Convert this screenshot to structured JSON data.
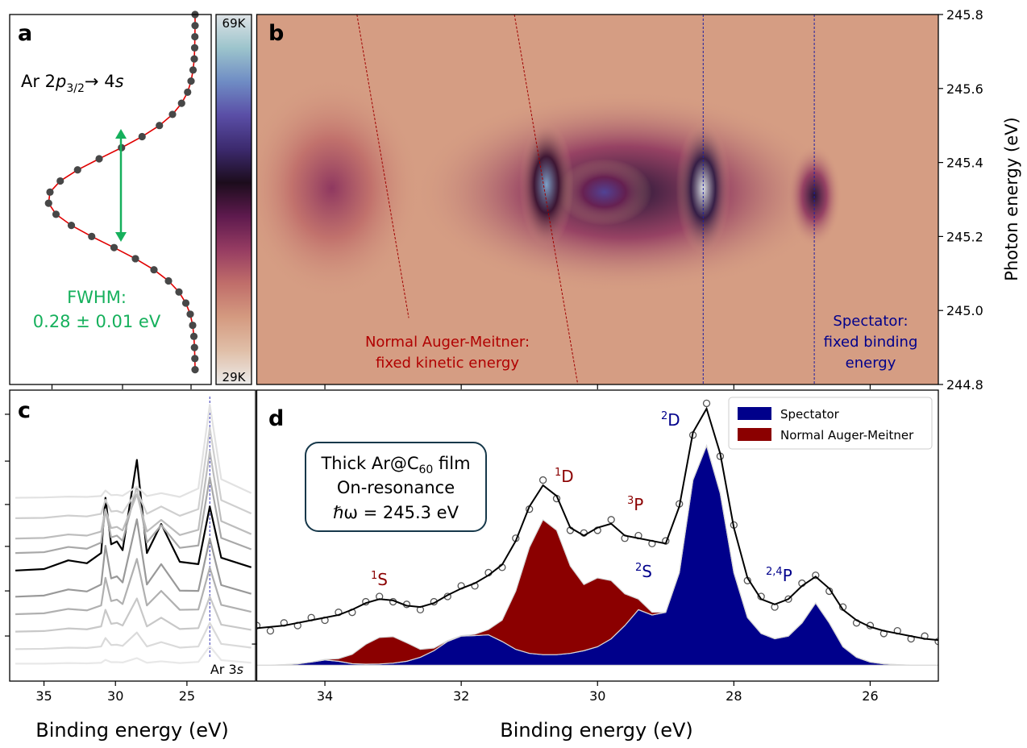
{
  "chart_data": [
    {
      "type": "scatter",
      "panel": "a",
      "annotation": [
        "Ar 2",
        "p",
        "3/2",
        "→ 4",
        "s"
      ],
      "fwhm": [
        "FWHM:",
        "0.28 ± 0.01 eV"
      ],
      "color": "#474747",
      "fit_color": "#e00000",
      "x": [
        0.92,
        0.92,
        0.919,
        0.918,
        0.916,
        0.91,
        0.9,
        0.883,
        0.853,
        0.808,
        0.743,
        0.657,
        0.555,
        0.444,
        0.337,
        0.251,
        0.2,
        0.193,
        0.23,
        0.306,
        0.407,
        0.518,
        0.624,
        0.716,
        0.788,
        0.84,
        0.874,
        0.896,
        0.908,
        0.914,
        0.917,
        0.919,
        0.92
      ],
      "y": [
        245.8,
        245.77,
        245.74,
        245.71,
        245.68,
        245.65,
        245.62,
        245.59,
        245.56,
        245.53,
        245.5,
        245.47,
        245.44,
        245.41,
        245.38,
        245.35,
        245.32,
        245.29,
        245.26,
        245.23,
        245.2,
        245.17,
        245.14,
        245.11,
        245.08,
        245.05,
        245.02,
        244.99,
        244.96,
        244.93,
        244.9,
        244.87,
        244.84
      ],
      "xlim": [
        0,
        1
      ],
      "ylim": [
        244.8,
        245.8
      ],
      "xticks": [
        0.21,
        0.56,
        0.9
      ]
    },
    {
      "type": "colorbar",
      "colormap": [
        "#ecebea",
        "#e0bfa8",
        "#d49a80",
        "#c06e6a",
        "#963c62",
        "#5e1a4e",
        "#1c0c1c",
        "#3c2a6e",
        "#5a4ea6",
        "#6f8cc4",
        "#9cc4cc",
        "#dfe3e6"
      ],
      "ylim": [
        29000,
        69000
      ],
      "yticks": [
        {
          "value": 69000,
          "label": "69K"
        },
        {
          "value": 29000,
          "label": "29K"
        }
      ]
    },
    {
      "type": "heatmap",
      "panel": "b",
      "xlim": [
        35,
        25
      ],
      "ylim": [
        244.8,
        245.8
      ],
      "xticks": [
        34,
        32,
        30,
        28,
        26
      ],
      "yticks": [
        244.8,
        {
          "value": 245,
          "label": "245.0"
        },
        245.2,
        245.4,
        245.6,
        245.8
      ],
      "ylabel": "Photon energy (eV)",
      "background": 36000,
      "peaks": [
        {
          "x": 29.6,
          "y": 245.32,
          "z": 52000,
          "wx": 6.2,
          "wy": 0.55
        },
        {
          "x": 33.9,
          "y": 245.33,
          "z": 44000,
          "wx": 2.6,
          "wy": 0.6
        },
        {
          "x": 29.9,
          "y": 245.32,
          "z": 57000,
          "wx": 1.4,
          "wy": 0.18
        },
        {
          "x": 30.75,
          "y": 245.34,
          "z": 63000,
          "wx": 0.8,
          "wy": 0.34
        },
        {
          "x": 28.45,
          "y": 245.33,
          "z": 69000,
          "wx": 0.8,
          "wy": 0.36
        },
        {
          "x": 26.82,
          "y": 245.31,
          "z": 52000,
          "wx": 0.8,
          "wy": 0.28
        }
      ],
      "guides": [
        {
          "x": [
            33.53,
            32.77
          ],
          "y": [
            245.8,
            244.98
          ],
          "color": "#a00000"
        },
        {
          "x": [
            31.22,
            30.29
          ],
          "y": [
            245.8,
            244.8
          ],
          "color": "#a00000"
        },
        {
          "x": [
            28.45,
            28.45
          ],
          "y": [
            245.8,
            244.8
          ],
          "color": "#2020a0"
        },
        {
          "x": [
            26.82,
            26.82
          ],
          "y": [
            245.8,
            244.8
          ],
          "color": "#2020a0"
        }
      ],
      "normal_label": [
        "Normal Auger-Meitner:",
        "fixed kinetic energy"
      ],
      "normal_color": "#b00000",
      "spectator_label": [
        "Spectator:",
        "fixed binding",
        "energy"
      ],
      "spectator_color": "#00008b"
    },
    {
      "type": "line",
      "panel": "c",
      "xlim": [
        37.4,
        20.2
      ],
      "ylim": [
        0,
        10
      ],
      "xticks": [
        35,
        30,
        25
      ],
      "yticks": [
        1.55,
        3.1,
        4.63,
        6.07,
        7.56,
        9.17
      ],
      "xlabel": "Binding energy (eV)",
      "guide_x": 23.4,
      "guide_label": [
        "Ar 3",
        "s"
      ],
      "guide_color": "#3030b0",
      "x": [
        37,
        35,
        33.3,
        32,
        31,
        30.7,
        30.3,
        29.9,
        29.5,
        28.5,
        27.8,
        26.8,
        25.5,
        24.2,
        23.4,
        22.6,
        20.5
      ],
      "series": [
        {
          "color": "#e8e8e8",
          "values": [
            0.6,
            0.6,
            0.62,
            0.61,
            0.63,
            0.73,
            0.65,
            0.65,
            0.64,
            0.79,
            0.63,
            0.68,
            0.62,
            0.66,
            1.2,
            0.72,
            0.63
          ]
        },
        {
          "color": "#dadada",
          "values": [
            1.1,
            1.11,
            1.15,
            1.14,
            1.19,
            1.48,
            1.24,
            1.25,
            1.21,
            1.67,
            1.19,
            1.34,
            1.15,
            1.19,
            2.0,
            1.28,
            1.15
          ]
        },
        {
          "color": "#c8c8c8",
          "values": [
            1.7,
            1.72,
            1.81,
            1.78,
            1.88,
            2.45,
            1.97,
            2.0,
            1.91,
            2.84,
            1.88,
            2.18,
            1.79,
            1.82,
            2.9,
            1.94,
            1.76
          ]
        },
        {
          "color": "#b0b0b0",
          "values": [
            2.3,
            2.33,
            2.48,
            2.43,
            2.6,
            3.55,
            2.75,
            2.8,
            2.65,
            4.2,
            2.6,
            3.1,
            2.45,
            2.46,
            3.9,
            2.62,
            2.38
          ]
        },
        {
          "color": "#999999",
          "values": [
            2.9,
            2.94,
            3.15,
            3.08,
            3.32,
            4.65,
            3.53,
            3.6,
            3.39,
            5.56,
            3.32,
            4.02,
            3.11,
            3.1,
            4.9,
            3.3,
            3.0
          ]
        },
        {
          "color": "#000000",
          "values": [
            3.8,
            3.85,
            4.15,
            4.05,
            4.4,
            6.3,
            4.7,
            4.8,
            4.5,
            7.6,
            4.4,
            5.4,
            4.1,
            4.02,
            6.0,
            4.24,
            3.91
          ]
        },
        {
          "color": "#a8a8a8",
          "values": [
            4.4,
            4.43,
            4.61,
            4.55,
            4.76,
            5.9,
            4.94,
            5.0,
            4.82,
            6.68,
            4.76,
            5.36,
            4.58,
            4.66,
            7.0,
            4.92,
            4.53
          ]
        },
        {
          "color": "#bdbdbd",
          "values": [
            4.9,
            4.92,
            5.04,
            5.0,
            5.14,
            5.9,
            5.26,
            5.3,
            5.18,
            6.42,
            5.14,
            5.54,
            5.02,
            5.2,
            7.9,
            5.5,
            5.05
          ]
        },
        {
          "color": "#cfcfcf",
          "values": [
            5.6,
            5.61,
            5.69,
            5.66,
            5.75,
            6.23,
            5.83,
            5.85,
            5.78,
            6.55,
            5.75,
            6.0,
            5.68,
            5.91,
            8.7,
            6.22,
            5.76
          ]
        },
        {
          "color": "#e2e2e2",
          "values": [
            6.3,
            6.31,
            6.34,
            6.33,
            6.36,
            6.55,
            6.39,
            6.4,
            6.37,
            6.68,
            6.36,
            6.46,
            6.33,
            6.62,
            9.5,
            6.94,
            6.46
          ]
        }
      ]
    },
    {
      "type": "area",
      "panel": "d",
      "xlim": [
        35,
        25
      ],
      "ylim": [
        -0.06,
        1.04
      ],
      "xticks": [
        34,
        32,
        30,
        28,
        26
      ],
      "yticks": [
        0.08
      ],
      "xlabel": "Binding energy (eV)",
      "x": [
        35,
        34.8,
        34.6,
        34.4,
        34.2,
        34,
        33.8,
        33.6,
        33.4,
        33.2,
        33,
        32.8,
        32.6,
        32.4,
        32.2,
        32,
        31.8,
        31.6,
        31.4,
        31.2,
        31,
        30.8,
        30.6,
        30.4,
        30.2,
        30,
        29.8,
        29.6,
        29.4,
        29.2,
        29,
        28.8,
        28.6,
        28.4,
        28.2,
        28,
        27.8,
        27.6,
        27.4,
        27.2,
        27,
        26.8,
        26.6,
        26.4,
        26.2,
        26,
        25.8,
        25.6,
        25.4,
        25.2,
        25
      ],
      "series": [
        {
          "name": "Spectator",
          "color": "#00008b",
          "values": [
            0,
            0,
            0.002,
            0.005,
            0.012,
            0.02,
            0.015,
            0.006,
            0.004,
            0.005,
            0.008,
            0.015,
            0.03,
            0.055,
            0.09,
            0.11,
            0.112,
            0.115,
            0.09,
            0.06,
            0.045,
            0.04,
            0.04,
            0.045,
            0.055,
            0.07,
            0.1,
            0.15,
            0.21,
            0.19,
            0.2,
            0.35,
            0.7,
            0.83,
            0.65,
            0.35,
            0.18,
            0.12,
            0.1,
            0.11,
            0.16,
            0.235,
            0.16,
            0.07,
            0.03,
            0.012,
            0.005,
            0.002,
            0,
            0,
            0
          ]
        },
        {
          "name": "Normal Auger-Meitner",
          "color": "#8b0000",
          "values": [
            0,
            0,
            0,
            0,
            0,
            0.002,
            0.01,
            0.035,
            0.075,
            0.1,
            0.1,
            0.07,
            0.03,
            0.01,
            0.003,
            0.002,
            0.005,
            0.02,
            0.08,
            0.22,
            0.4,
            0.51,
            0.47,
            0.33,
            0.25,
            0.26,
            0.22,
            0.12,
            0.04,
            0.01,
            0,
            0,
            0,
            0,
            0,
            0,
            0,
            0,
            0,
            0,
            0,
            0,
            0,
            0,
            0,
            0,
            0,
            0,
            0,
            0,
            0
          ]
        }
      ],
      "fit": {
        "color": "#000000",
        "values": [
          0.14,
          0.145,
          0.15,
          0.16,
          0.17,
          0.18,
          0.19,
          0.21,
          0.235,
          0.25,
          0.245,
          0.225,
          0.22,
          0.235,
          0.265,
          0.29,
          0.31,
          0.34,
          0.38,
          0.47,
          0.6,
          0.68,
          0.64,
          0.52,
          0.49,
          0.52,
          0.535,
          0.49,
          0.48,
          0.47,
          0.46,
          0.6,
          0.88,
          0.97,
          0.8,
          0.52,
          0.33,
          0.25,
          0.23,
          0.25,
          0.3,
          0.335,
          0.29,
          0.21,
          0.17,
          0.145,
          0.13,
          0.12,
          0.11,
          0.1,
          0.095
        ]
      },
      "points": {
        "color": "#555555",
        "values": [
          0.15,
          0.13,
          0.16,
          0.15,
          0.18,
          0.17,
          0.2,
          0.2,
          0.24,
          0.26,
          0.24,
          0.23,
          0.21,
          0.24,
          0.26,
          0.3,
          0.3,
          0.35,
          0.37,
          0.48,
          0.59,
          0.7,
          0.63,
          0.51,
          0.5,
          0.51,
          0.55,
          0.48,
          0.49,
          0.46,
          0.47,
          0.61,
          0.87,
          0.99,
          0.79,
          0.53,
          0.32,
          0.26,
          0.22,
          0.25,
          0.31,
          0.34,
          0.28,
          0.22,
          0.16,
          0.15,
          0.12,
          0.13,
          0.1,
          0.11,
          0.09
        ]
      },
      "peak_labels": [
        {
          "sup": "2",
          "text": "D",
          "color": "#00008b"
        },
        {
          "sup": "1",
          "text": "D",
          "color": "#8b0000"
        },
        {
          "sup": "3",
          "text": "P",
          "color": "#8b0000"
        },
        {
          "sup": "1",
          "text": "S",
          "color": "#8b0000"
        },
        {
          "sup": "2",
          "text": "S",
          "color": "#00008b"
        },
        {
          "sup": "2,4",
          "text": "P",
          "color": "#00008b"
        }
      ],
      "box": {
        "line1": [
          "Thick Ar@C",
          "60",
          " film"
        ],
        "line2": "On-resonance",
        "line3": "ℏω = 245.3 eV"
      }
    }
  ]
}
